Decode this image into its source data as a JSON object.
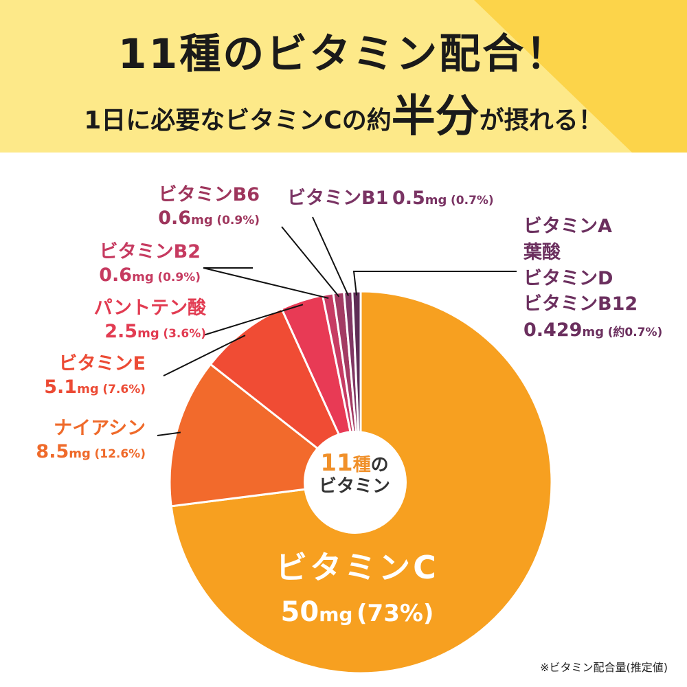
{
  "header": {
    "title": "11種のビタミン配合！",
    "subtitle_pre": "1日に必要なビタミンCの約",
    "subtitle_em": "半分",
    "subtitle_post": "が摂れる！",
    "bg_color": "#fde989",
    "stripe_color": "#fcd44a"
  },
  "center": {
    "num": "11",
    "kanji": "種",
    "rest": "の",
    "line2": "ビタミン"
  },
  "footnote": "※ビタミン配合量(推定値)",
  "chart_data": {
    "type": "pie",
    "donut": true,
    "start": "top",
    "direction": "clockwise",
    "slices": [
      {
        "name": "ビタミンC",
        "amount": "50",
        "unit": "mg",
        "pct_label": "(73%)",
        "value": 73,
        "color": "#f7a020",
        "label_color": "#ffffff"
      },
      {
        "name": "ナイアシン",
        "amount": "8.5",
        "unit": "mg",
        "pct_label": "(12.6%)",
        "value": 12.6,
        "color": "#f26a2c",
        "label_color": "#ef6a2a"
      },
      {
        "name": "ビタミンE",
        "amount": "5.1",
        "unit": "mg",
        "pct_label": "(7.6%)",
        "value": 7.6,
        "color": "#f04c34",
        "label_color": "#ec4a34"
      },
      {
        "name": "パントテン酸",
        "amount": "2.5",
        "unit": "mg",
        "pct_label": "(3.6%)",
        "value": 3.6,
        "color": "#e83a55",
        "label_color": "#e23c52"
      },
      {
        "name": "ビタミンB2",
        "amount": "0.6",
        "unit": "mg",
        "pct_label": "(0.9%)",
        "value": 0.9,
        "color": "#c73b63",
        "label_color": "#c63a60"
      },
      {
        "name": "ビタミンB6",
        "amount": "0.6",
        "unit": "mg",
        "pct_label": "(0.9%)",
        "value": 0.9,
        "color": "#a33b63",
        "label_color": "#9e355c"
      },
      {
        "name": "ビタミンB1",
        "amount": "0.5",
        "unit": "mg",
        "pct_label": "(0.7%)",
        "value": 0.7,
        "color": "#803663",
        "label_color": "#7a3464"
      },
      {
        "names": [
          "ビタミンA",
          "葉酸",
          "ビタミンD",
          "ビタミンB12"
        ],
        "amount": "0.429",
        "unit": "mg",
        "pct_label": "(約0.7%)",
        "value": 0.7,
        "color": "#5e2d55",
        "label_color": "#6b2f5e"
      }
    ]
  }
}
